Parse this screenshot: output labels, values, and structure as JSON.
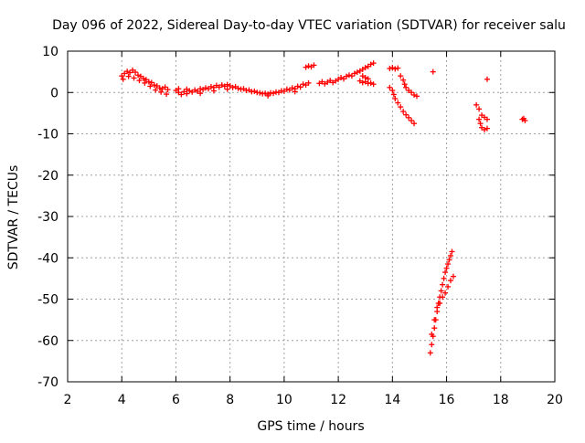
{
  "chart_data": {
    "type": "scatter",
    "title": "Day 096 of 2022, Sidereal Day-to-day VTEC variation (SDTVAR) for receiver salu",
    "xlabel": "GPS time / hours",
    "ylabel": "SDTVAR / TECUs",
    "xlim": [
      2,
      20
    ],
    "ylim": [
      -70,
      10
    ],
    "xticks": [
      2,
      4,
      6,
      8,
      10,
      12,
      14,
      16,
      18,
      20
    ],
    "yticks": [
      10,
      0,
      -10,
      -20,
      -30,
      -40,
      -50,
      -60,
      -70
    ],
    "xtick_labels": [
      "2",
      "4",
      "6",
      "8",
      "10",
      "12",
      "14",
      "16",
      "18",
      "20"
    ],
    "ytick_labels": [
      "10",
      "0",
      "-10",
      "-20",
      "-30",
      "-40",
      "-50",
      "-60",
      "-70"
    ],
    "grid": true,
    "marker": "+",
    "series_color": "#ff0000",
    "series": [
      {
        "name": "SDTVAR",
        "points": [
          [
            4.0,
            4.0
          ],
          [
            4.1,
            4.6
          ],
          [
            4.2,
            5.1
          ],
          [
            4.3,
            4.8
          ],
          [
            4.4,
            5.4
          ],
          [
            4.5,
            4.9
          ],
          [
            4.6,
            4.2
          ],
          [
            4.7,
            3.9
          ],
          [
            4.8,
            3.4
          ],
          [
            4.9,
            3.1
          ],
          [
            5.0,
            2.6
          ],
          [
            5.1,
            2.4
          ],
          [
            5.2,
            1.8
          ],
          [
            5.3,
            1.6
          ],
          [
            5.4,
            1.1
          ],
          [
            5.5,
            0.9
          ],
          [
            5.6,
            1.3
          ],
          [
            5.7,
            0.7
          ],
          [
            4.05,
            3.2
          ],
          [
            4.25,
            3.9
          ],
          [
            4.45,
            3.5
          ],
          [
            4.65,
            2.9
          ],
          [
            4.85,
            2.3
          ],
          [
            5.05,
            1.5
          ],
          [
            5.25,
            0.6
          ],
          [
            5.45,
            0.1
          ],
          [
            5.65,
            -0.4
          ],
          [
            6.0,
            0.5
          ],
          [
            6.1,
            0.0
          ],
          [
            6.2,
            -0.5
          ],
          [
            6.3,
            0.2
          ],
          [
            6.4,
            -0.3
          ],
          [
            6.5,
            0.4
          ],
          [
            6.6,
            0.1
          ],
          [
            6.7,
            0.6
          ],
          [
            6.8,
            0.3
          ],
          [
            6.9,
            0.9
          ],
          [
            7.0,
            0.7
          ],
          [
            7.1,
            1.1
          ],
          [
            7.2,
            0.9
          ],
          [
            7.3,
            1.4
          ],
          [
            7.4,
            1.2
          ],
          [
            7.5,
            1.7
          ],
          [
            7.6,
            1.3
          ],
          [
            7.7,
            1.8
          ],
          [
            7.8,
            1.5
          ],
          [
            7.9,
            1.9
          ],
          [
            8.0,
            1.6
          ],
          [
            8.1,
            1.2
          ],
          [
            8.2,
            1.4
          ],
          [
            8.3,
            1.0
          ],
          [
            8.4,
            0.8
          ],
          [
            8.5,
            0.9
          ],
          [
            8.6,
            0.5
          ],
          [
            8.7,
            0.6
          ],
          [
            8.8,
            0.2
          ],
          [
            8.9,
            0.3
          ],
          [
            9.0,
            0.0
          ],
          [
            9.1,
            -0.1
          ],
          [
            9.2,
            -0.3
          ],
          [
            9.3,
            -0.2
          ],
          [
            9.4,
            -0.4
          ],
          [
            9.5,
            -0.1
          ],
          [
            9.6,
            -0.2
          ],
          [
            9.7,
            0.1
          ],
          [
            9.8,
            0.0
          ],
          [
            9.9,
            0.4
          ],
          [
            10.0,
            0.3
          ],
          [
            10.1,
            0.8
          ],
          [
            10.2,
            0.6
          ],
          [
            10.3,
            1.1
          ],
          [
            10.4,
            0.9
          ],
          [
            10.5,
            1.5
          ],
          [
            10.6,
            1.3
          ],
          [
            10.7,
            2.0
          ],
          [
            10.8,
            1.8
          ],
          [
            10.9,
            2.3
          ],
          [
            6.1,
            0.9
          ],
          [
            6.4,
            0.8
          ],
          [
            6.9,
            -0.2
          ],
          [
            7.4,
            0.4
          ],
          [
            7.9,
            0.8
          ],
          [
            9.4,
            -0.8
          ],
          [
            10.4,
            0.2
          ],
          [
            10.8,
            6.1
          ],
          [
            10.9,
            6.4
          ],
          [
            11.0,
            6.2
          ],
          [
            11.1,
            6.6
          ],
          [
            11.3,
            2.2
          ],
          [
            11.4,
            2.6
          ],
          [
            11.5,
            2.1
          ],
          [
            11.6,
            2.5
          ],
          [
            11.7,
            2.9
          ],
          [
            11.8,
            2.4
          ],
          [
            11.9,
            2.8
          ],
          [
            12.0,
            3.2
          ],
          [
            12.1,
            3.6
          ],
          [
            12.2,
            3.3
          ],
          [
            12.3,
            3.9
          ],
          [
            12.4,
            4.2
          ],
          [
            12.5,
            4.0
          ],
          [
            12.6,
            4.6
          ],
          [
            12.7,
            4.9
          ],
          [
            12.8,
            5.2
          ],
          [
            12.9,
            5.6
          ],
          [
            13.0,
            6.0
          ],
          [
            13.1,
            6.3
          ],
          [
            13.2,
            6.8
          ],
          [
            13.3,
            7.1
          ],
          [
            12.8,
            2.8
          ],
          [
            12.9,
            2.4
          ],
          [
            13.0,
            2.6
          ],
          [
            13.1,
            2.2
          ],
          [
            13.2,
            2.3
          ],
          [
            13.3,
            2.0
          ],
          [
            12.9,
            4.0
          ],
          [
            13.0,
            3.6
          ],
          [
            13.1,
            3.3
          ],
          [
            13.9,
            5.8
          ],
          [
            14.0,
            6.0
          ],
          [
            14.1,
            5.7
          ],
          [
            14.2,
            5.9
          ],
          [
            13.9,
            1.2
          ],
          [
            14.0,
            0.5
          ],
          [
            14.05,
            -0.5
          ],
          [
            14.1,
            -1.5
          ],
          [
            14.2,
            -2.5
          ],
          [
            14.3,
            -3.5
          ],
          [
            14.4,
            -4.6
          ],
          [
            14.5,
            -5.4
          ],
          [
            14.6,
            -6.1
          ],
          [
            14.7,
            -6.8
          ],
          [
            14.8,
            -7.5
          ],
          [
            14.3,
            4.0
          ],
          [
            14.4,
            3.0
          ],
          [
            14.45,
            2.0
          ],
          [
            14.5,
            1.2
          ],
          [
            14.6,
            0.5
          ],
          [
            14.7,
            0.0
          ],
          [
            14.8,
            -0.6
          ],
          [
            14.9,
            -0.9
          ],
          [
            15.5,
            5.0
          ],
          [
            15.4,
            -63.0
          ],
          [
            15.45,
            -61.0
          ],
          [
            15.5,
            -59.0
          ],
          [
            15.55,
            -57.0
          ],
          [
            15.6,
            -55.0
          ],
          [
            15.65,
            -53.0
          ],
          [
            15.7,
            -51.0
          ],
          [
            15.75,
            -49.5
          ],
          [
            15.8,
            -48.0
          ],
          [
            15.85,
            -46.5
          ],
          [
            15.9,
            -45.0
          ],
          [
            15.95,
            -43.5
          ],
          [
            16.0,
            -42.5
          ],
          [
            16.05,
            -41.5
          ],
          [
            16.1,
            -40.5
          ],
          [
            16.15,
            -39.5
          ],
          [
            16.2,
            -38.5
          ],
          [
            15.45,
            -58.5
          ],
          [
            15.55,
            -55.0
          ],
          [
            15.65,
            -52.0
          ],
          [
            15.75,
            -51.0
          ],
          [
            15.85,
            -49.5
          ],
          [
            15.95,
            -48.5
          ],
          [
            16.05,
            -47.0
          ],
          [
            16.15,
            -45.5
          ],
          [
            16.25,
            -44.5
          ],
          [
            17.1,
            -3.0
          ],
          [
            17.2,
            -4.0
          ],
          [
            17.3,
            -5.5
          ],
          [
            17.4,
            -6.0
          ],
          [
            17.5,
            -6.5
          ],
          [
            17.2,
            -6.5
          ],
          [
            17.25,
            -7.5
          ],
          [
            17.3,
            -8.5
          ],
          [
            17.4,
            -9.0
          ],
          [
            17.5,
            -8.7
          ],
          [
            17.5,
            3.2
          ],
          [
            18.8,
            -6.5
          ],
          [
            18.9,
            -6.8
          ],
          [
            18.85,
            -6.3
          ]
        ]
      }
    ]
  }
}
